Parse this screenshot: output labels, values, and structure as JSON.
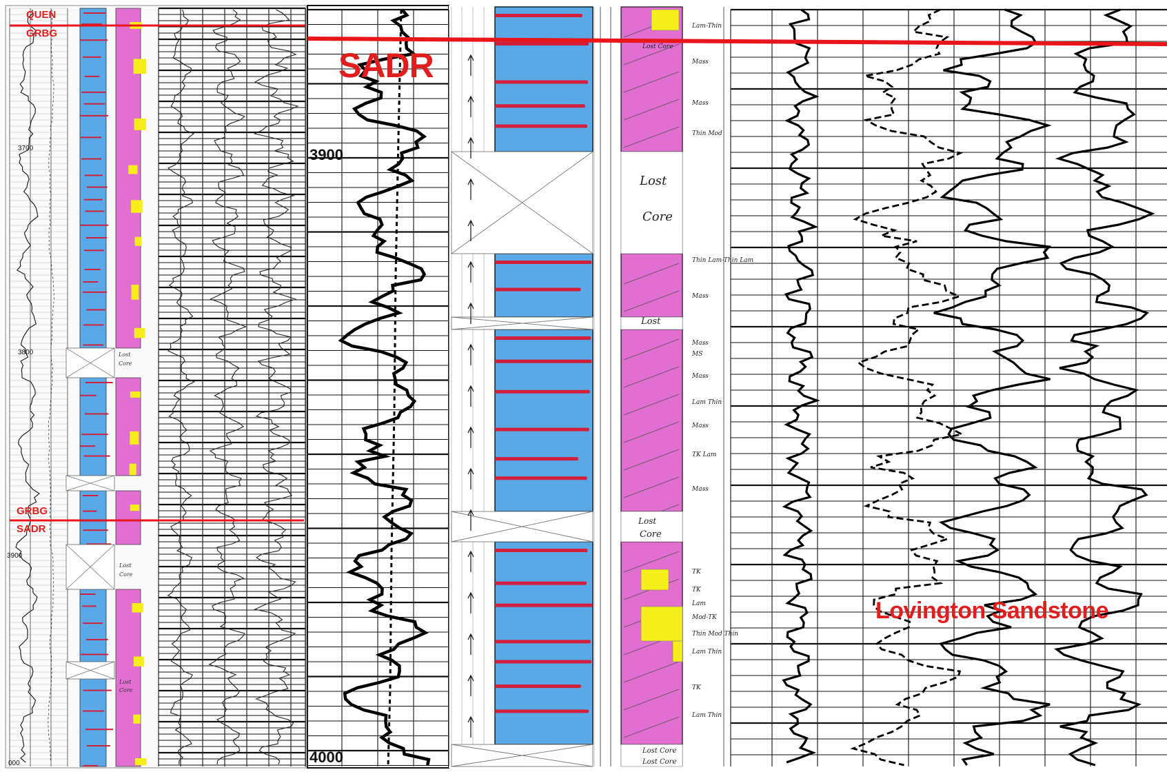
{
  "overview": {
    "top_pick": {
      "upper": "QUEN",
      "lower": "GRBG"
    },
    "bottom_pick": {
      "upper": "GRBG",
      "lower": "SADR"
    },
    "depth_labels": [
      "3700",
      "3800",
      "3900",
      "000"
    ],
    "core_notes": [
      "Lost",
      "Core",
      "Lost",
      "Core",
      "Lost",
      "Core"
    ]
  },
  "detail": {
    "formation_label": "SADR",
    "depth_labels": [
      "3900",
      "4000"
    ],
    "annotations": [
      "Lost Core",
      "Lost",
      "Core",
      "Lost",
      "Lost",
      "Core",
      "Lost Core",
      "Lost Core"
    ],
    "texture_notes": [
      "Lam-Thin",
      "Mass",
      "Mass",
      "Thin Mod",
      "Thin Lam-Thin Lam",
      "Mass",
      "Mass",
      "MS",
      "Mass",
      "Lam Thin",
      "Mass",
      "TK Lam",
      "Mass",
      "TK",
      "TK",
      "Lam",
      "Mod-TK",
      "Thin Mod Thin",
      "Lam Thin",
      "TK",
      "Lam Thin"
    ]
  },
  "logs": {
    "unit_label": "Lovington Sandstone"
  },
  "colors": {
    "pick_line": "#e8151b",
    "label_red": "#e11d1d",
    "grain_blue": "#5aa9e6",
    "mud_magenta": "#e06fd1",
    "sand_yellow": "#f5ee1b",
    "stylolite_red": "#d21f3c"
  }
}
